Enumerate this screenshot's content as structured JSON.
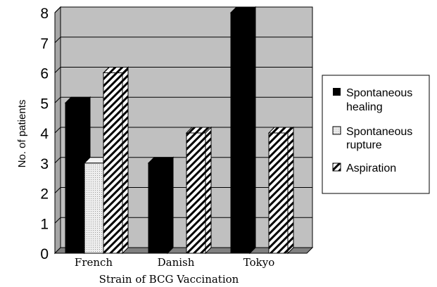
{
  "chart_data": {
    "type": "bar",
    "categories": [
      "French",
      "Danish",
      "Tokyo"
    ],
    "series": [
      {
        "name": "Spontaneous healing",
        "values": [
          5,
          3,
          8
        ],
        "pattern": "solid-black"
      },
      {
        "name": "Spontaneous rupture",
        "values": [
          3,
          0,
          0
        ],
        "pattern": "dotted-light"
      },
      {
        "name": "Aspiration",
        "values": [
          6,
          4,
          4
        ],
        "pattern": "diagonal-hatch"
      }
    ],
    "xlabel": "Strain of BCG Vaccination",
    "ylabel": "No. of patients",
    "ylim": [
      0,
      8
    ],
    "yticks": [
      "0",
      "1",
      "2",
      "3",
      "4",
      "5",
      "6",
      "7",
      "8"
    ],
    "grid": true,
    "legend_position": "right",
    "legend": [
      {
        "line1": "Spontaneous",
        "line2": "healing"
      },
      {
        "line1": "Spontaneous",
        "line2": "rupture"
      },
      {
        "line1": "Aspiration",
        "line2": ""
      }
    ],
    "colors": {
      "plot_background": "#c0c0c0",
      "wall_shade": "#a6a6a6",
      "healing": "#000000",
      "rupture": "#e0e0e0",
      "hatch": "#000000"
    }
  }
}
